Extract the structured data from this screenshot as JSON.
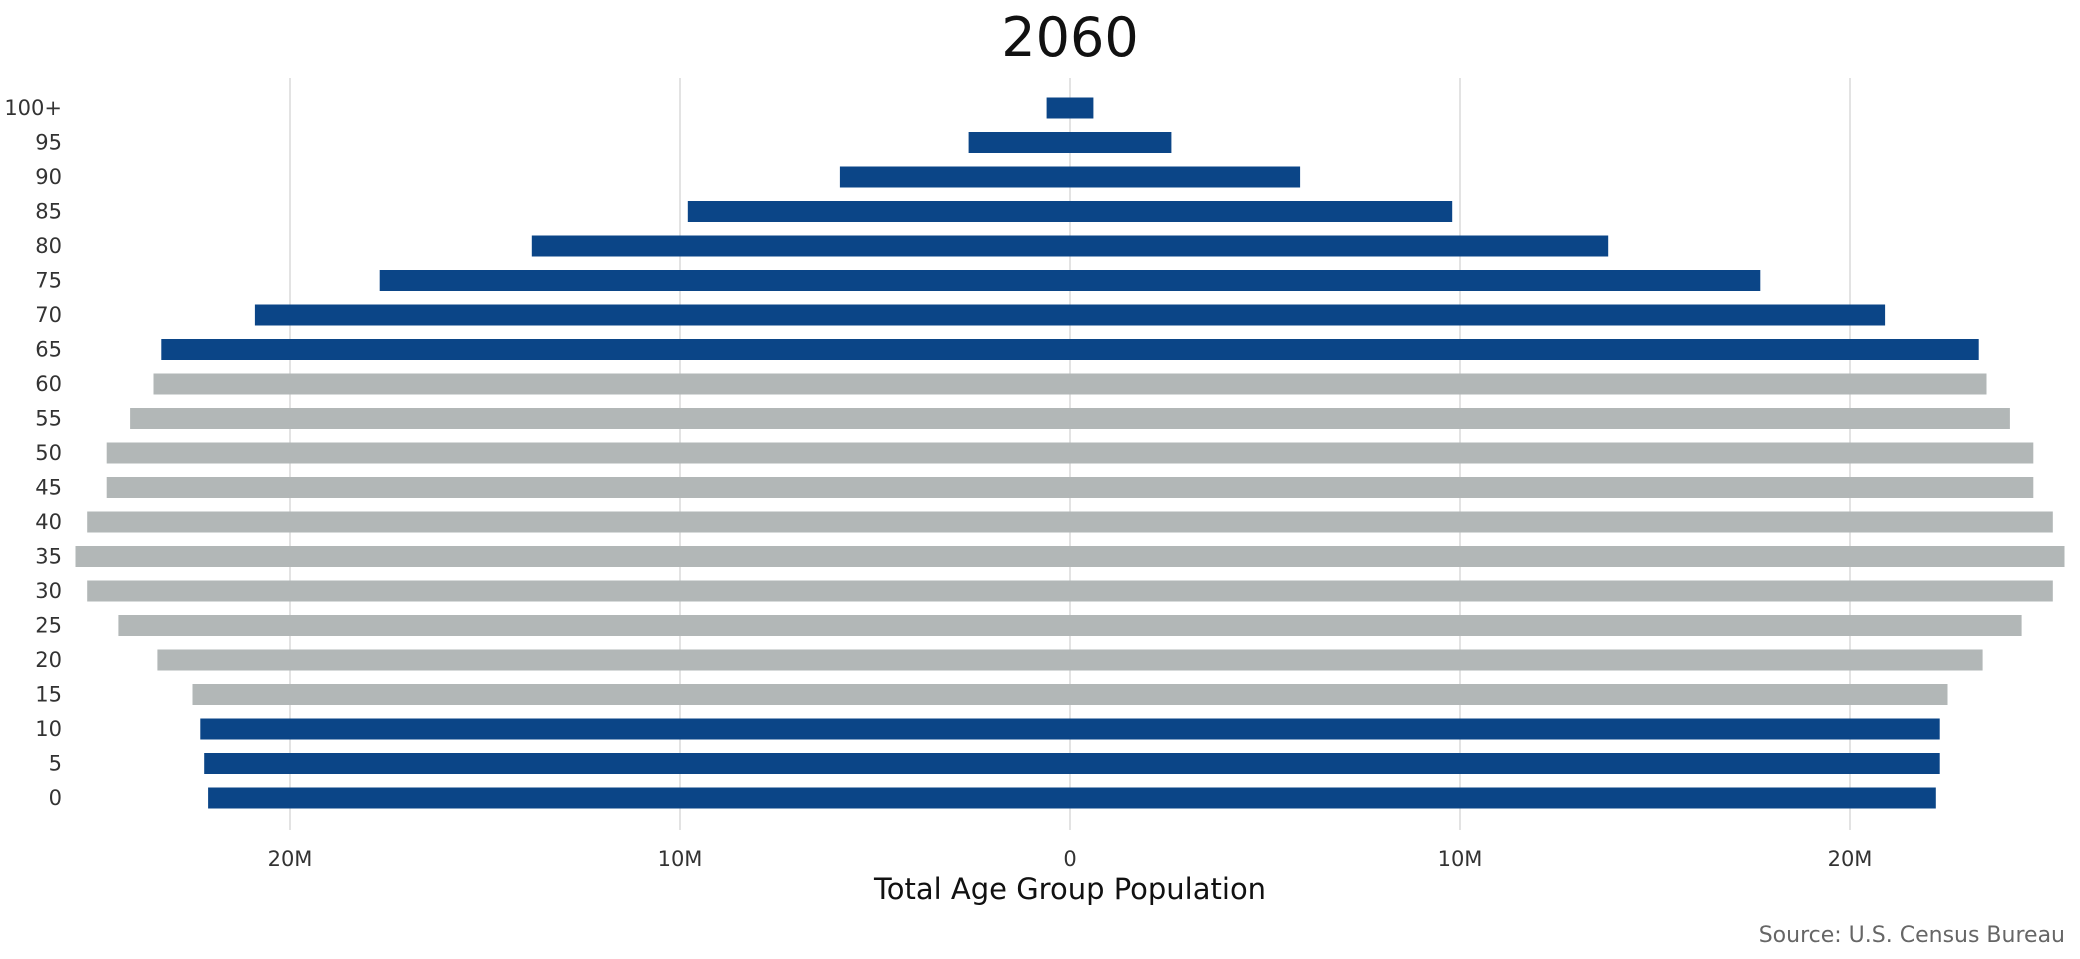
{
  "chart_data": {
    "type": "bar",
    "orientation": "horizontal",
    "subtype": "population-pyramid",
    "title": "2060",
    "xlabel": "Total Age Group Population",
    "ylabel": "",
    "caption": "Source: U.S. Census Bureau",
    "xlim": [
      -25.5,
      25.5
    ],
    "x_ticks": [
      -20,
      -10,
      0,
      10,
      20
    ],
    "x_tick_labels": [
      "20M",
      "10M",
      "0",
      "10M",
      "20M"
    ],
    "grid": "vertical",
    "legend": "none",
    "colors": {
      "highlight": "#0b4587",
      "base": "#b2b7b7"
    },
    "categories": [
      "0",
      "5",
      "10",
      "15",
      "20",
      "25",
      "30",
      "35",
      "40",
      "45",
      "50",
      "55",
      "60",
      "65",
      "70",
      "75",
      "80",
      "85",
      "90",
      "95",
      "100+"
    ],
    "left_values": [
      22.1,
      22.2,
      22.3,
      22.5,
      23.4,
      24.4,
      25.2,
      25.5,
      25.2,
      24.7,
      24.7,
      24.1,
      23.5,
      23.3,
      20.9,
      17.7,
      13.8,
      9.8,
      5.9,
      2.6,
      0.6
    ],
    "right_values": [
      22.2,
      22.3,
      22.3,
      22.5,
      23.4,
      24.4,
      25.2,
      25.5,
      25.2,
      24.7,
      24.7,
      24.1,
      23.5,
      23.3,
      20.9,
      17.7,
      13.8,
      9.8,
      5.9,
      2.6,
      0.6
    ],
    "highlighted": [
      true,
      true,
      true,
      false,
      false,
      false,
      false,
      false,
      false,
      false,
      false,
      false,
      false,
      true,
      true,
      true,
      true,
      true,
      true,
      true,
      true
    ],
    "units": "millions"
  }
}
